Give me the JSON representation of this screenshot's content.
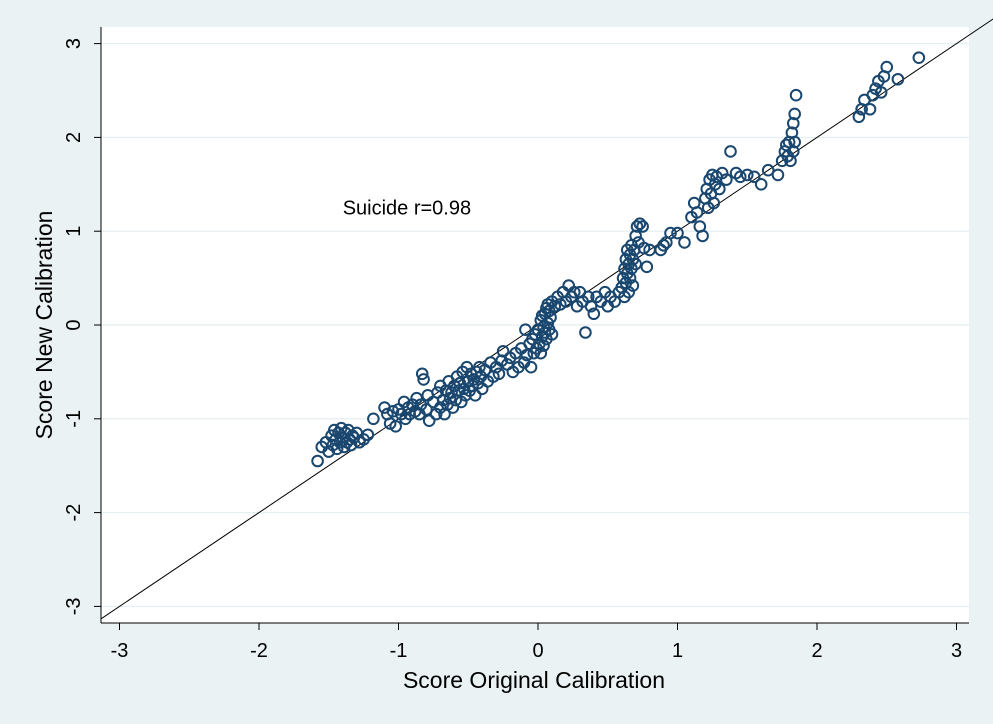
{
  "chart_data": {
    "type": "scatter",
    "xlabel": "Score Original Calibration",
    "ylabel": "Score New Calibration",
    "xlim": [
      -3.1,
      3.1
    ],
    "ylim": [
      -3.1,
      3.1
    ],
    "x_ticks": [
      "-3",
      "-2",
      "-1",
      "0",
      "1",
      "2",
      "3"
    ],
    "y_ticks": [
      "-3",
      "-2",
      "-1",
      "0",
      "1",
      "2",
      "3"
    ],
    "grid": "horizontal",
    "reference_line": "y = x",
    "annotation": {
      "text": "Suicide r=0.98",
      "x": -1.4,
      "y": 1.18
    },
    "marker_color": "#1a476f",
    "background_color": "#eaf2f3",
    "plot_background_color": "#ffffff",
    "series": [
      {
        "points": [
          [
            -1.58,
            -1.45
          ],
          [
            -1.55,
            -1.3
          ],
          [
            -1.52,
            -1.25
          ],
          [
            -1.5,
            -1.35
          ],
          [
            -1.48,
            -1.18
          ],
          [
            -1.47,
            -1.28
          ],
          [
            -1.46,
            -1.12
          ],
          [
            -1.45,
            -1.22
          ],
          [
            -1.44,
            -1.32
          ],
          [
            -1.43,
            -1.15
          ],
          [
            -1.42,
            -1.25
          ],
          [
            -1.41,
            -1.1
          ],
          [
            -1.4,
            -1.2
          ],
          [
            -1.39,
            -1.3
          ],
          [
            -1.38,
            -1.15
          ],
          [
            -1.37,
            -1.25
          ],
          [
            -1.36,
            -1.12
          ],
          [
            -1.35,
            -1.22
          ],
          [
            -1.34,
            -1.28
          ],
          [
            -1.33,
            -1.18
          ],
          [
            -1.32,
            -1.2
          ],
          [
            -1.3,
            -1.15
          ],
          [
            -1.28,
            -1.25
          ],
          [
            -1.25,
            -1.22
          ],
          [
            -1.22,
            -1.17
          ],
          [
            -1.18,
            -1.0
          ],
          [
            -1.1,
            -0.88
          ],
          [
            -1.08,
            -0.95
          ],
          [
            -1.06,
            -1.05
          ],
          [
            -1.04,
            -0.92
          ],
          [
            -1.02,
            -1.08
          ],
          [
            -1.0,
            -0.9
          ],
          [
            -0.98,
            -0.95
          ],
          [
            -0.96,
            -0.82
          ],
          [
            -0.95,
            -1.0
          ],
          [
            -0.93,
            -0.88
          ],
          [
            -0.92,
            -0.95
          ],
          [
            -0.9,
            -0.85
          ],
          [
            -0.88,
            -0.92
          ],
          [
            -0.87,
            -0.78
          ],
          [
            -0.85,
            -0.95
          ],
          [
            -0.84,
            -0.85
          ],
          [
            -0.83,
            -0.52
          ],
          [
            -0.82,
            -0.58
          ],
          [
            -0.8,
            -0.9
          ],
          [
            -0.79,
            -0.75
          ],
          [
            -0.78,
            -1.02
          ],
          [
            -0.75,
            -0.82
          ],
          [
            -0.73,
            -0.95
          ],
          [
            -0.72,
            -0.72
          ],
          [
            -0.7,
            -0.88
          ],
          [
            -0.7,
            -0.65
          ],
          [
            -0.68,
            -0.8
          ],
          [
            -0.67,
            -0.95
          ],
          [
            -0.66,
            -0.7
          ],
          [
            -0.65,
            -0.85
          ],
          [
            -0.64,
            -0.6
          ],
          [
            -0.63,
            -0.78
          ],
          [
            -0.62,
            -0.72
          ],
          [
            -0.61,
            -0.88
          ],
          [
            -0.6,
            -0.65
          ],
          [
            -0.59,
            -0.8
          ],
          [
            -0.58,
            -0.55
          ],
          [
            -0.57,
            -0.7
          ],
          [
            -0.56,
            -0.62
          ],
          [
            -0.55,
            -0.82
          ],
          [
            -0.54,
            -0.5
          ],
          [
            -0.53,
            -0.68
          ],
          [
            -0.52,
            -0.75
          ],
          [
            -0.51,
            -0.45
          ],
          [
            -0.5,
            -0.6
          ],
          [
            -0.49,
            -0.7
          ],
          [
            -0.48,
            -0.52
          ],
          [
            -0.47,
            -0.65
          ],
          [
            -0.46,
            -0.58
          ],
          [
            -0.45,
            -0.75
          ],
          [
            -0.44,
            -0.5
          ],
          [
            -0.43,
            -0.62
          ],
          [
            -0.42,
            -0.45
          ],
          [
            -0.41,
            -0.55
          ],
          [
            -0.4,
            -0.68
          ],
          [
            -0.38,
            -0.48
          ],
          [
            -0.36,
            -0.6
          ],
          [
            -0.34,
            -0.4
          ],
          [
            -0.32,
            -0.55
          ],
          [
            -0.3,
            -0.45
          ],
          [
            -0.28,
            -0.52
          ],
          [
            -0.26,
            -0.38
          ],
          [
            -0.25,
            -0.28
          ],
          [
            -0.22,
            -0.42
          ],
          [
            -0.2,
            -0.35
          ],
          [
            -0.18,
            -0.5
          ],
          [
            -0.16,
            -0.3
          ],
          [
            -0.14,
            -0.45
          ],
          [
            -0.12,
            -0.25
          ],
          [
            -0.1,
            -0.4
          ],
          [
            -0.09,
            -0.05
          ],
          [
            -0.08,
            -0.32
          ],
          [
            -0.06,
            -0.2
          ],
          [
            -0.05,
            -0.45
          ],
          [
            -0.04,
            -0.15
          ],
          [
            -0.03,
            -0.3
          ],
          [
            -0.02,
            -0.1
          ],
          [
            -0.01,
            -0.25
          ],
          [
            0.0,
            -0.05
          ],
          [
            0.01,
            -0.2
          ],
          [
            0.02,
            0.05
          ],
          [
            0.02,
            -0.3
          ],
          [
            0.03,
            -0.12
          ],
          [
            0.03,
            0.1
          ],
          [
            0.04,
            -0.02
          ],
          [
            0.04,
            -0.22
          ],
          [
            0.05,
            0.12
          ],
          [
            0.05,
            -0.08
          ],
          [
            0.06,
            0.18
          ],
          [
            0.06,
            -0.15
          ],
          [
            0.07,
            0.02
          ],
          [
            0.07,
            0.22
          ],
          [
            0.08,
            -0.05
          ],
          [
            0.08,
            0.15
          ],
          [
            0.09,
            0.08
          ],
          [
            0.1,
            0.25
          ],
          [
            0.1,
            -0.1
          ],
          [
            0.12,
            0.2
          ],
          [
            0.14,
            0.3
          ],
          [
            0.16,
            0.22
          ],
          [
            0.18,
            0.35
          ],
          [
            0.2,
            0.25
          ],
          [
            0.22,
            0.42
          ],
          [
            0.24,
            0.3
          ],
          [
            0.26,
            0.35
          ],
          [
            0.28,
            0.2
          ],
          [
            0.3,
            0.35
          ],
          [
            0.32,
            0.25
          ],
          [
            0.34,
            -0.08
          ],
          [
            0.36,
            0.3
          ],
          [
            0.38,
            0.2
          ],
          [
            0.4,
            0.12
          ],
          [
            0.42,
            0.3
          ],
          [
            0.45,
            0.25
          ],
          [
            0.48,
            0.35
          ],
          [
            0.5,
            0.2
          ],
          [
            0.52,
            0.3
          ],
          [
            0.55,
            0.25
          ],
          [
            0.58,
            0.35
          ],
          [
            0.6,
            0.4
          ],
          [
            0.61,
            0.5
          ],
          [
            0.62,
            0.6
          ],
          [
            0.62,
            0.3
          ],
          [
            0.63,
            0.7
          ],
          [
            0.63,
            0.45
          ],
          [
            0.64,
            0.8
          ],
          [
            0.64,
            0.55
          ],
          [
            0.65,
            0.65
          ],
          [
            0.65,
            0.35
          ],
          [
            0.66,
            0.75
          ],
          [
            0.66,
            0.5
          ],
          [
            0.67,
            0.85
          ],
          [
            0.67,
            0.6
          ],
          [
            0.68,
            0.7
          ],
          [
            0.68,
            0.42
          ],
          [
            0.69,
            0.8
          ],
          [
            0.7,
            0.95
          ],
          [
            0.7,
            0.65
          ],
          [
            0.71,
            1.05
          ],
          [
            0.72,
            0.88
          ],
          [
            0.73,
            1.08
          ],
          [
            0.75,
            1.05
          ],
          [
            0.76,
            0.82
          ],
          [
            0.78,
            0.62
          ],
          [
            0.8,
            0.8
          ],
          [
            0.88,
            0.8
          ],
          [
            0.9,
            0.85
          ],
          [
            0.92,
            0.88
          ],
          [
            0.95,
            0.98
          ],
          [
            1.0,
            0.98
          ],
          [
            1.05,
            0.88
          ],
          [
            1.1,
            1.15
          ],
          [
            1.12,
            1.3
          ],
          [
            1.14,
            1.2
          ],
          [
            1.16,
            1.05
          ],
          [
            1.18,
            0.95
          ],
          [
            1.2,
            1.35
          ],
          [
            1.21,
            1.45
          ],
          [
            1.22,
            1.25
          ],
          [
            1.23,
            1.55
          ],
          [
            1.24,
            1.4
          ],
          [
            1.25,
            1.6
          ],
          [
            1.26,
            1.3
          ],
          [
            1.27,
            1.5
          ],
          [
            1.28,
            1.58
          ],
          [
            1.3,
            1.45
          ],
          [
            1.32,
            1.62
          ],
          [
            1.35,
            1.55
          ],
          [
            1.38,
            1.85
          ],
          [
            1.42,
            1.62
          ],
          [
            1.45,
            1.58
          ],
          [
            1.5,
            1.6
          ],
          [
            1.55,
            1.58
          ],
          [
            1.6,
            1.5
          ],
          [
            1.65,
            1.65
          ],
          [
            1.72,
            1.6
          ],
          [
            1.75,
            1.75
          ],
          [
            1.77,
            1.85
          ],
          [
            1.78,
            1.92
          ],
          [
            1.79,
            1.8
          ],
          [
            1.8,
            1.95
          ],
          [
            1.81,
            1.75
          ],
          [
            1.82,
            2.05
          ],
          [
            1.83,
            2.15
          ],
          [
            1.83,
            1.85
          ],
          [
            1.84,
            2.25
          ],
          [
            1.84,
            1.95
          ],
          [
            1.85,
            2.45
          ],
          [
            2.3,
            2.22
          ],
          [
            2.32,
            2.3
          ],
          [
            2.34,
            2.4
          ],
          [
            2.38,
            2.3
          ],
          [
            2.4,
            2.45
          ],
          [
            2.42,
            2.52
          ],
          [
            2.44,
            2.6
          ],
          [
            2.46,
            2.48
          ],
          [
            2.48,
            2.65
          ],
          [
            2.5,
            2.75
          ],
          [
            2.58,
            2.62
          ],
          [
            2.73,
            2.85
          ]
        ]
      }
    ]
  }
}
